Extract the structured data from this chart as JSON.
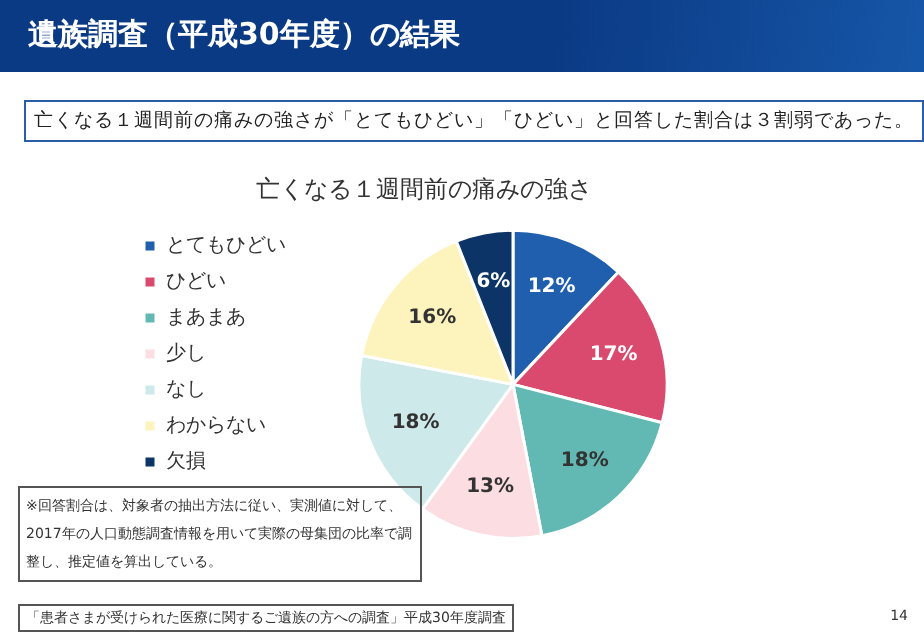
{
  "chart_data": {
    "type": "pie",
    "title": "亡くなる１週間前の痛みの強さ",
    "subtitle": "亡くなる１週間前の痛みの強さが「とてもひどい」「ひどい」と回答した割合は３割弱であった。",
    "categories": [
      "とてもひどい",
      "ひどい",
      "まあまあ",
      "少し",
      "なし",
      "わからない",
      "欠損"
    ],
    "values": [
      12,
      17,
      18,
      13,
      18,
      16,
      6
    ],
    "value_labels": [
      "12%",
      "17%",
      "18%",
      "13%",
      "18%",
      "16%",
      "6%"
    ],
    "colors": [
      "#1f5fae",
      "#d94a6e",
      "#62b9b4",
      "#fbdde2",
      "#cde9ea",
      "#fdf3bd",
      "#0c3466"
    ],
    "legend": "left",
    "annotations": [
      "遺族調査（平成30年度）の結果",
      "※回答割合は、対象者の抽出方法に従い、実測値に対して、2017年の人口動態調査情報を用いて実際の母集団の比率で調整し、推定値を算出している。",
      "「患者さまが受けられた医療に関するご遺族の方への調査」平成30年度調査",
      "14"
    ]
  }
}
